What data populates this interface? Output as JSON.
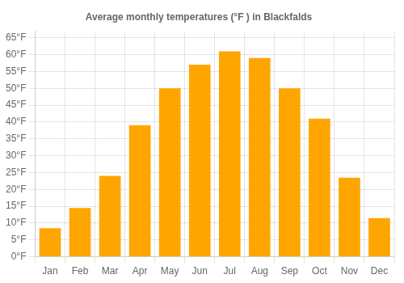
{
  "chart_data": {
    "type": "bar",
    "title": "Average monthly temperatures (°F ) in Blackfalds",
    "categories": [
      "Jan",
      "Feb",
      "Mar",
      "Apr",
      "May",
      "Jun",
      "Jul",
      "Aug",
      "Sep",
      "Oct",
      "Nov",
      "Dec"
    ],
    "values": [
      8.5,
      14.5,
      24,
      39,
      50,
      57,
      61,
      59,
      50,
      41,
      23.5,
      11.5
    ],
    "color": "#FFA500",
    "ylim": [
      0,
      67
    ],
    "yticks": [
      {
        "value": 0,
        "label": "0°F"
      },
      {
        "value": 5,
        "label": "5°F"
      },
      {
        "value": 10,
        "label": "10°F"
      },
      {
        "value": 15,
        "label": "15°F"
      },
      {
        "value": 20,
        "label": "20°F"
      },
      {
        "value": 25,
        "label": "25°F"
      },
      {
        "value": 30,
        "label": "30°F"
      },
      {
        "value": 35,
        "label": "35°F"
      },
      {
        "value": 40,
        "label": "40°F"
      },
      {
        "value": 45,
        "label": "45°F"
      },
      {
        "value": 50,
        "label": "50°F"
      },
      {
        "value": 55,
        "label": "55°F"
      },
      {
        "value": 60,
        "label": "60°F"
      },
      {
        "value": 65,
        "label": "65°F"
      }
    ],
    "grid": true
  }
}
